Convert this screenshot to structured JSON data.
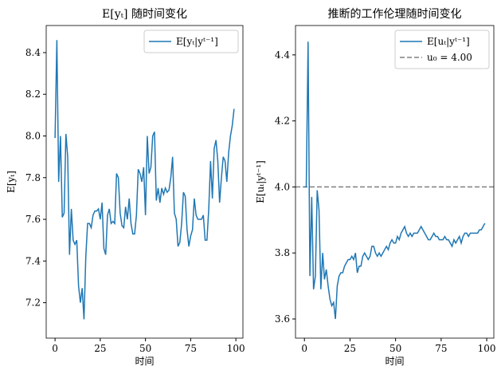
{
  "chart_data": [
    {
      "type": "line",
      "title": "E[yₜ] 随时间变化",
      "xlabel": "时间",
      "ylabel": "E[yₜ]",
      "legend": "upper right",
      "x": [
        0,
        1,
        2,
        3,
        4,
        5,
        6,
        7,
        8,
        9,
        10,
        11,
        12,
        13,
        14,
        15,
        16,
        17,
        18,
        19,
        20,
        21,
        22,
        23,
        24,
        25,
        26,
        27,
        28,
        29,
        30,
        31,
        32,
        33,
        34,
        35,
        36,
        37,
        38,
        39,
        40,
        41,
        42,
        43,
        44,
        45,
        46,
        47,
        48,
        49,
        50,
        51,
        52,
        53,
        54,
        55,
        56,
        57,
        58,
        59,
        60,
        61,
        62,
        63,
        64,
        65,
        66,
        67,
        68,
        69,
        70,
        71,
        72,
        73,
        74,
        75,
        76,
        77,
        78,
        79,
        80,
        81,
        82,
        83,
        84,
        85,
        86,
        87,
        88,
        89,
        90,
        91,
        92,
        93,
        94,
        95,
        96,
        97,
        98,
        99
      ],
      "series": [
        {
          "name": "E[yₜ|yᵗ⁻¹]",
          "color": "#1f77b4",
          "values": [
            7.99,
            8.46,
            7.78,
            8.0,
            7.61,
            7.63,
            8.01,
            7.9,
            7.43,
            7.65,
            7.5,
            7.48,
            7.5,
            7.28,
            7.2,
            7.27,
            7.12,
            7.42,
            7.58,
            7.58,
            7.56,
            7.62,
            7.64,
            7.64,
            7.65,
            7.6,
            7.68,
            7.46,
            7.43,
            7.62,
            7.65,
            7.58,
            7.59,
            7.58,
            7.82,
            7.8,
            7.63,
            7.57,
            7.56,
            7.66,
            7.6,
            7.7,
            7.58,
            7.53,
            7.53,
            7.62,
            7.84,
            7.82,
            7.78,
            7.85,
            7.62,
            8.0,
            7.82,
            7.85,
            8.0,
            8.02,
            7.69,
            7.75,
            7.68,
            7.75,
            7.72,
            7.75,
            7.73,
            7.74,
            7.8,
            7.9,
            7.63,
            7.6,
            7.47,
            7.49,
            7.58,
            7.73,
            7.71,
            7.55,
            7.47,
            7.52,
            7.55,
            7.7,
            7.62,
            7.6,
            7.6,
            7.6,
            7.62,
            7.5,
            7.5,
            7.65,
            7.88,
            7.7,
            7.94,
            7.98,
            7.88,
            7.68,
            7.8,
            7.9,
            7.88,
            7.78,
            7.92,
            8.0,
            8.05,
            8.13
          ]
        }
      ],
      "xlim": [
        -4.9,
        103.9
      ],
      "ylim": [
        7.03,
        8.53
      ],
      "xticks": [
        0,
        25,
        50,
        75,
        100
      ],
      "yticks": [
        7.2,
        7.4,
        7.6,
        7.8,
        {
          "value": 8,
          "label": "8.0"
        },
        8.2,
        8.4
      ]
    },
    {
      "type": "line",
      "title": "推断的工作伦理随时间变化",
      "xlabel": "时间",
      "ylabel": "E[uₜ|yᵗ⁻¹]",
      "legend": "upper right",
      "x": [
        0,
        1,
        2,
        3,
        4,
        5,
        6,
        7,
        8,
        9,
        10,
        11,
        12,
        13,
        14,
        15,
        16,
        17,
        18,
        19,
        20,
        21,
        22,
        23,
        24,
        25,
        26,
        27,
        28,
        29,
        30,
        31,
        32,
        33,
        34,
        35,
        36,
        37,
        38,
        39,
        40,
        41,
        42,
        43,
        44,
        45,
        46,
        47,
        48,
        49,
        50,
        51,
        52,
        53,
        54,
        55,
        56,
        57,
        58,
        59,
        60,
        61,
        62,
        63,
        64,
        65,
        66,
        67,
        68,
        69,
        70,
        71,
        72,
        73,
        74,
        75,
        76,
        77,
        78,
        79,
        80,
        81,
        82,
        83,
        84,
        85,
        86,
        87,
        88,
        89,
        90,
        91,
        92,
        93,
        94,
        95,
        96,
        97,
        98,
        99
      ],
      "series": [
        {
          "name": "E[uₜ|yᵗ⁻¹]",
          "color": "#1f77b4",
          "values": [
            4.0,
            4.0,
            4.44,
            3.73,
            3.97,
            3.69,
            3.73,
            3.99,
            3.93,
            3.69,
            3.8,
            3.72,
            3.75,
            3.7,
            3.66,
            3.64,
            3.65,
            3.6,
            3.7,
            3.73,
            3.74,
            3.74,
            3.76,
            3.77,
            3.78,
            3.78,
            3.79,
            3.78,
            3.8,
            3.74,
            3.76,
            3.76,
            3.79,
            3.8,
            3.79,
            3.78,
            3.79,
            3.82,
            3.82,
            3.8,
            3.79,
            3.8,
            3.79,
            3.8,
            3.81,
            3.82,
            3.81,
            3.83,
            3.84,
            3.83,
            3.83,
            3.85,
            3.84,
            3.86,
            3.87,
            3.88,
            3.86,
            3.85,
            3.86,
            3.85,
            3.86,
            3.86,
            3.86,
            3.87,
            3.88,
            3.87,
            3.86,
            3.85,
            3.84,
            3.84,
            3.85,
            3.86,
            3.85,
            3.85,
            3.84,
            3.84,
            3.84,
            3.85,
            3.84,
            3.84,
            3.83,
            3.82,
            3.84,
            3.83,
            3.84,
            3.85,
            3.83,
            3.85,
            3.86,
            3.86,
            3.85,
            3.86,
            3.86,
            3.86,
            3.86,
            3.86,
            3.87,
            3.87,
            3.88,
            3.89
          ]
        }
      ],
      "hline": {
        "name": "u₀ = 4.00",
        "value": 4,
        "color": "#808080"
      },
      "xlim": [
        -4.9,
        103.9
      ],
      "ylim": [
        3.542,
        4.489
      ],
      "xticks": [
        0,
        25,
        50,
        75,
        100
      ],
      "yticks": [
        3.6,
        3.8,
        {
          "value": 4,
          "label": "4.0"
        },
        4.2,
        4.4
      ]
    }
  ]
}
